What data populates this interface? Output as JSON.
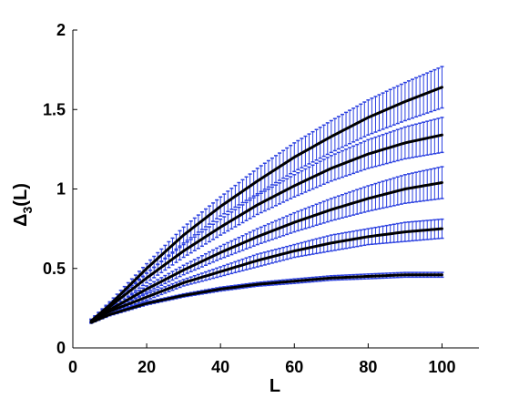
{
  "chart_data": {
    "type": "line",
    "title": "",
    "xlabel": "L",
    "ylabel_main": "Δ",
    "ylabel_sub": "3",
    "ylabel_tail": "(L)",
    "xlim": [
      0,
      110
    ],
    "ylim": [
      0,
      2
    ],
    "x_ticks": [
      0,
      20,
      40,
      60,
      80,
      100
    ],
    "y_ticks": [
      0,
      0.5,
      1,
      1.5,
      2
    ],
    "x_tick_labels": [
      "0",
      "20",
      "40",
      "60",
      "80",
      "100"
    ],
    "y_tick_labels": [
      "0",
      "0.5",
      "1",
      "1.5",
      "2"
    ],
    "grid": false,
    "legend": "none",
    "colors": {
      "fit_line": "#000000",
      "error_bars": "#2a3fe0",
      "axes": "#000000"
    },
    "x": [
      5,
      10,
      20,
      30,
      40,
      50,
      60,
      70,
      80,
      90,
      100
    ],
    "series": [
      {
        "values": [
          0.17,
          0.27,
          0.5,
          0.71,
          0.89,
          1.05,
          1.2,
          1.33,
          1.45,
          1.55,
          1.64
        ],
        "error": [
          0.01,
          0.02,
          0.03,
          0.05,
          0.06,
          0.08,
          0.09,
          0.1,
          0.11,
          0.12,
          0.13
        ]
      },
      {
        "values": [
          0.17,
          0.26,
          0.44,
          0.61,
          0.76,
          0.9,
          1.02,
          1.13,
          1.22,
          1.29,
          1.34
        ],
        "error": [
          0.01,
          0.02,
          0.03,
          0.04,
          0.05,
          0.06,
          0.07,
          0.08,
          0.09,
          0.1,
          0.11
        ]
      },
      {
        "values": [
          0.17,
          0.24,
          0.37,
          0.49,
          0.6,
          0.7,
          0.79,
          0.87,
          0.94,
          1.0,
          1.04
        ],
        "error": [
          0.01,
          0.01,
          0.02,
          0.03,
          0.04,
          0.05,
          0.06,
          0.07,
          0.08,
          0.09,
          0.1
        ]
      },
      {
        "values": [
          0.17,
          0.23,
          0.32,
          0.41,
          0.48,
          0.55,
          0.61,
          0.66,
          0.7,
          0.73,
          0.75
        ],
        "error": [
          0.01,
          0.01,
          0.02,
          0.02,
          0.03,
          0.04,
          0.04,
          0.05,
          0.05,
          0.06,
          0.06
        ]
      },
      {
        "values": [
          0.16,
          0.21,
          0.28,
          0.33,
          0.37,
          0.4,
          0.42,
          0.44,
          0.45,
          0.46,
          0.46
        ],
        "error": [
          0.005,
          0.008,
          0.01,
          0.01,
          0.012,
          0.012,
          0.014,
          0.014,
          0.015,
          0.015,
          0.015
        ]
      }
    ]
  }
}
